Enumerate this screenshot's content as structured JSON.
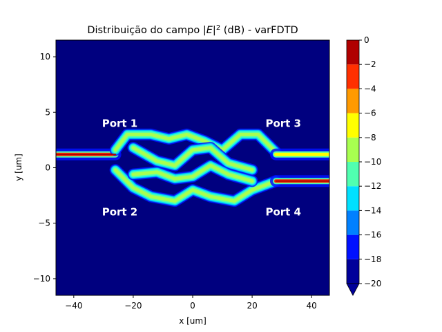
{
  "chart_data": {
    "type": "heatmap",
    "title": "Distribuição do campo |E|² (dB) - varFDTD",
    "title_parts": {
      "prefix": "Distribuição do campo |",
      "var": "E",
      "suffix": "|",
      "sup": "2",
      "tail": " (dB) - varFDTD"
    },
    "xlabel": "x [um]",
    "ylabel": "y [um]",
    "xlim": [
      -46,
      46
    ],
    "ylim": [
      -11.5,
      11.5
    ],
    "xticks": [
      {
        "value": -40,
        "label": "−40"
      },
      {
        "value": -20,
        "label": "−20"
      },
      {
        "value": 0,
        "label": "0"
      },
      {
        "value": 20,
        "label": "20"
      },
      {
        "value": 40,
        "label": "40"
      }
    ],
    "yticks": [
      {
        "value": 10,
        "label": "10"
      },
      {
        "value": 5,
        "label": "5"
      },
      {
        "value": 0,
        "label": "0"
      },
      {
        "value": -5,
        "label": "−5"
      },
      {
        "value": -10,
        "label": "−10"
      }
    ],
    "colorbar": {
      "ticks": [
        {
          "value": 0,
          "label": "0"
        },
        {
          "value": -2,
          "label": "−2"
        },
        {
          "value": -4,
          "label": "−4"
        },
        {
          "value": -6,
          "label": "−6"
        },
        {
          "value": -8,
          "label": "−8"
        },
        {
          "value": -10,
          "label": "−10"
        },
        {
          "value": -12,
          "label": "−12"
        },
        {
          "value": -14,
          "label": "−14"
        },
        {
          "value": -16,
          "label": "−16"
        },
        {
          "value": -18,
          "label": "−18"
        },
        {
          "value": -20,
          "label": "−20"
        }
      ],
      "levels": [
        -20,
        -18,
        -16,
        -14,
        -12,
        -10,
        -8,
        -6,
        -4,
        -2,
        0
      ],
      "colors": [
        "#00009a",
        "#0010ff",
        "#0080ff",
        "#00e0ff",
        "#50ffb0",
        "#a8ff50",
        "#ffff00",
        "#ff9a00",
        "#ff3000",
        "#b00000"
      ],
      "extend": "min"
    },
    "background_color": "#00007f",
    "annotations": [
      {
        "text": "Port 1",
        "x": -30.5,
        "y": 4.0
      },
      {
        "text": "Port 2",
        "x": -30.5,
        "y": -4.0
      },
      {
        "text": "Port 3",
        "x": 24.5,
        "y": 4.0
      },
      {
        "text": "Port 4",
        "x": 24.5,
        "y": -4.0
      }
    ],
    "field_paths": [
      {
        "name": "input-waveguide",
        "points": [
          [
            -46,
            1.2
          ],
          [
            -30,
            1.2
          ],
          [
            -26,
            1.2
          ]
        ],
        "level_dB": -3
      },
      {
        "name": "upper-arm",
        "points": [
          [
            -26,
            1.6
          ],
          [
            -22,
            3.0
          ],
          [
            -14,
            3.0
          ],
          [
            -8,
            2.6
          ],
          [
            -2,
            3.0
          ],
          [
            4,
            2.4
          ],
          [
            10,
            1.6
          ],
          [
            16,
            3.0
          ],
          [
            22,
            3.0
          ],
          [
            28,
            1.4
          ]
        ],
        "level_dB": -9
      },
      {
        "name": "lower-arm",
        "points": [
          [
            -26,
            -0.2
          ],
          [
            -20,
            -1.8
          ],
          [
            -14,
            -2.6
          ],
          [
            -6,
            -3.0
          ],
          [
            0,
            -2.0
          ],
          [
            6,
            -2.6
          ],
          [
            14,
            -3.0
          ],
          [
            20,
            -2.0
          ],
          [
            28,
            -1.2
          ]
        ],
        "level_dB": -9
      },
      {
        "name": "inner-upper",
        "points": [
          [
            -20,
            1.8
          ],
          [
            -12,
            0.6
          ],
          [
            -6,
            0.2
          ],
          [
            0,
            1.6
          ],
          [
            6,
            1.8
          ],
          [
            12,
            0.4
          ],
          [
            20,
            -0.2
          ]
        ],
        "level_dB": -10
      },
      {
        "name": "inner-lower",
        "points": [
          [
            -20,
            -0.6
          ],
          [
            -12,
            -0.4
          ],
          [
            -6,
            -1.0
          ],
          [
            0,
            -0.8
          ],
          [
            6,
            0.2
          ],
          [
            12,
            -0.6
          ],
          [
            20,
            -1.2
          ]
        ],
        "level_dB": -10
      },
      {
        "name": "output-port-3",
        "points": [
          [
            28,
            1.2
          ],
          [
            46,
            1.2
          ]
        ],
        "level_dB": -7
      },
      {
        "name": "output-port-4",
        "points": [
          [
            28,
            -1.2
          ],
          [
            46,
            -1.2
          ]
        ],
        "level_dB": -4
      }
    ]
  }
}
